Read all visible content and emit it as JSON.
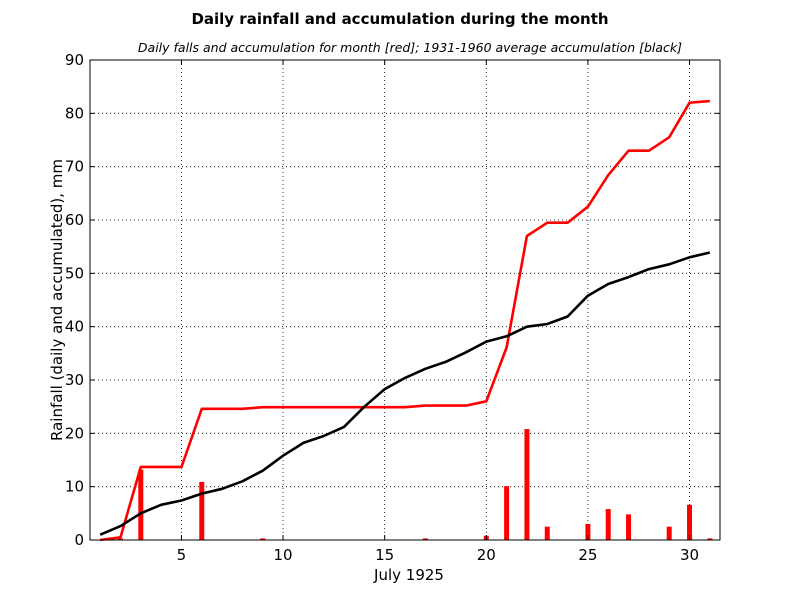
{
  "chart_data": {
    "type": "bar+line",
    "title": "Daily rainfall and accumulation during the month",
    "subtitle": "Daily falls and accumulation for month [red]; 1931-1960 average accumulation [black]",
    "xlabel": "July 1925",
    "ylabel": "Rainfall (daily and accumulated), mm",
    "xlim": [
      0.5,
      31.5
    ],
    "ylim": [
      0,
      90
    ],
    "xticks": [
      5,
      10,
      15,
      20,
      25,
      30
    ],
    "yticks": [
      0,
      10,
      20,
      30,
      40,
      50,
      60,
      70,
      80,
      90
    ],
    "grid": true,
    "x": [
      1,
      2,
      3,
      4,
      5,
      6,
      7,
      8,
      9,
      10,
      11,
      12,
      13,
      14,
      15,
      16,
      17,
      18,
      19,
      20,
      21,
      22,
      23,
      24,
      25,
      26,
      27,
      28,
      29,
      30,
      31
    ],
    "daily_falls": {
      "color": "#ff0000",
      "values": [
        0,
        0.3,
        13.2,
        0,
        0,
        10.9,
        0,
        0,
        0.3,
        0,
        0,
        0,
        0,
        0,
        0,
        0,
        0.3,
        0,
        0,
        0.8,
        10.1,
        20.8,
        2.5,
        0,
        3.0,
        5.8,
        4.8,
        0,
        2.5,
        6.6,
        0.3
      ]
    },
    "series": [
      {
        "color": "#ff0000",
        "values": [
          0,
          0.5,
          13.7,
          13.7,
          13.7,
          24.6,
          24.6,
          24.6,
          24.9,
          24.9,
          24.9,
          24.9,
          24.9,
          24.9,
          24.9,
          24.9,
          25.2,
          25.2,
          25.2,
          26.0,
          36.1,
          57.0,
          59.5,
          59.5,
          62.5,
          68.4,
          73.0,
          73.0,
          75.5,
          82.0,
          82.3
        ]
      },
      {
        "color": "#000000",
        "values": [
          1.0,
          2.6,
          5.0,
          6.6,
          7.4,
          8.7,
          9.6,
          11.0,
          13.0,
          15.8,
          18.2,
          19.5,
          21.2,
          25.0,
          28.3,
          30.4,
          32.1,
          33.4,
          35.2,
          37.2,
          38.2,
          40.0,
          40.5,
          41.9,
          45.8,
          48.0,
          49.3,
          50.8,
          51.7,
          53.0,
          53.9
        ]
      }
    ]
  }
}
